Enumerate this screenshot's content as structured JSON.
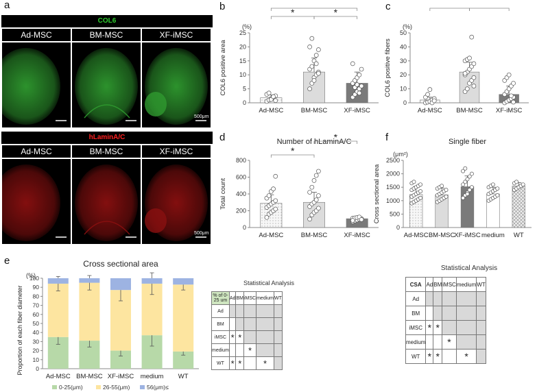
{
  "panels": {
    "a": "a",
    "b": "b",
    "c": "c",
    "d": "d",
    "e": "e",
    "f": "f"
  },
  "micrographs": {
    "col6": {
      "title": "COL6",
      "title_color": "#2ecc2e",
      "labels": [
        "Ad-MSC",
        "BM-MSC",
        "XF-iMSC"
      ],
      "scale": "500μm",
      "stain_color": "#2f9a2f"
    },
    "lamin": {
      "title": "hLaminA/C",
      "title_color": "#ff2020",
      "labels": [
        "Ad-MSC",
        "BM-MSC",
        "XF-iMSC"
      ],
      "scale": "500μm",
      "stain_color": "#8a1010"
    }
  },
  "chart_data": [
    {
      "id": "b",
      "type": "bar",
      "title": "",
      "unit": "(%)",
      "ylabel": "COL6 positive area",
      "categories": [
        "Ad-MSC",
        "BM-MSC",
        "XF-iMSC"
      ],
      "values": [
        1.8,
        11,
        7
      ],
      "errors": [
        1,
        5,
        4
      ],
      "colors": [
        "#f4f4f4",
        "#dcdcdc",
        "#7a7a7a"
      ],
      "patterns": [
        "dots",
        "none",
        "none"
      ],
      "ylim": [
        0,
        25
      ],
      "yticks": [
        "0",
        "5",
        "10",
        "15",
        "20",
        "25"
      ],
      "points": [
        [
          0.5,
          1,
          1.5,
          2,
          2.5,
          3,
          3.5,
          1.2,
          2.2,
          0.8
        ],
        [
          5,
          7,
          9,
          10,
          11,
          12,
          13,
          15,
          17,
          19,
          20,
          23,
          8,
          14,
          10.5
        ],
        [
          2,
          3,
          4,
          5,
          6,
          7,
          8,
          9,
          10,
          12,
          14,
          5.5,
          6.5,
          3.5
        ]
      ],
      "significance": [
        {
          "from": 0,
          "to": 1,
          "label": "*"
        },
        {
          "from": 1,
          "to": 2,
          "label": "*"
        },
        {
          "from": 0,
          "to": 2,
          "label": "*"
        }
      ]
    },
    {
      "id": "c",
      "type": "bar",
      "title": "",
      "unit": "(%)",
      "ylabel": "COL6 positive fibers",
      "categories": [
        "Ad-MSC",
        "BM-MSC",
        "XF-iMSC"
      ],
      "values": [
        2,
        22,
        6
      ],
      "errors": [
        2,
        7,
        6
      ],
      "colors": [
        "#f4f4f4",
        "#dcdcdc",
        "#7a7a7a"
      ],
      "patterns": [
        "dots",
        "none",
        "none"
      ],
      "ylim": [
        0,
        50
      ],
      "yticks": [
        "0",
        "10",
        "20",
        "30",
        "40",
        "50"
      ],
      "points": [
        [
          0,
          0.5,
          1,
          2,
          3,
          4,
          6,
          9.5,
          0,
          1.5
        ],
        [
          8,
          10,
          14,
          16,
          18,
          20,
          22,
          24,
          26,
          28,
          30,
          31,
          32,
          47,
          12,
          21
        ],
        [
          0,
          1,
          2,
          3,
          4,
          6,
          8,
          10,
          12,
          14,
          16,
          18,
          20,
          5,
          0.5
        ]
      ],
      "significance": [
        {
          "from": 0,
          "to": 1,
          "label": "*"
        },
        {
          "from": 1,
          "to": 2,
          "label": "*"
        }
      ]
    },
    {
      "id": "d",
      "type": "bar",
      "title": "Number of hLaminA/C",
      "ylabel": "Total count",
      "categories": [
        "Ad-MSC",
        "BM-MSC",
        "XF-iMSC"
      ],
      "values": [
        290,
        300,
        105
      ],
      "errors": [
        100,
        120,
        20
      ],
      "colors": [
        "#f4f4f4",
        "#dcdcdc",
        "#7a7a7a"
      ],
      "patterns": [
        "dots",
        "none",
        "none"
      ],
      "ylim": [
        0,
        800
      ],
      "yticks": [
        "0",
        "200",
        "400",
        "600",
        "800"
      ],
      "points": [
        [
          120,
          160,
          180,
          200,
          220,
          240,
          260,
          280,
          300,
          320,
          350,
          380,
          430,
          460,
          610
        ],
        [
          100,
          150,
          180,
          200,
          230,
          250,
          280,
          300,
          330,
          380,
          420,
          480,
          560,
          620,
          670
        ],
        [
          70,
          80,
          90,
          100,
          105,
          110,
          115,
          120,
          125,
          95,
          85
        ]
      ],
      "significance": [
        {
          "from": 0,
          "to": 1,
          "label": "*"
        },
        {
          "from": 1,
          "to": 2,
          "label": "*"
        }
      ]
    },
    {
      "id": "f",
      "type": "bar",
      "title": "Single fiber",
      "unit": "(μm²)",
      "ylabel": "Cross sectional area",
      "categories": [
        "Ad-MSC",
        "BM-MSC",
        "XF-iMSC",
        "medium",
        "WT"
      ],
      "values": [
        1230,
        1220,
        1520,
        1250,
        1550
      ],
      "errors": [
        300,
        250,
        400,
        250,
        120
      ],
      "colors": [
        "#f4f4f4",
        "#dcdcdc",
        "#7a7a7a",
        "#ffffff",
        "#e4e4e4"
      ],
      "patterns": [
        "dots",
        "none",
        "none",
        "none",
        "cross"
      ],
      "ylim": [
        0,
        2500
      ],
      "yticks": [
        "0",
        "500",
        "1000",
        "1500",
        "2000",
        "2500"
      ],
      "points": [
        [
          900,
          950,
          1000,
          1050,
          1100,
          1150,
          1200,
          1250,
          1300,
          1350,
          1400,
          1450,
          1500,
          1550,
          1600,
          1650,
          1700
        ],
        [
          950,
          1000,
          1050,
          1100,
          1150,
          1200,
          1250,
          1300,
          1350,
          1400,
          1450,
          1500,
          1550
        ],
        [
          1100,
          1200,
          1300,
          1400,
          1500,
          1600,
          1700,
          1800,
          1900,
          2000,
          2100,
          2200,
          1250
        ],
        [
          1000,
          1050,
          1100,
          1150,
          1200,
          1250,
          1300,
          1350,
          1400,
          1450,
          1500,
          1550,
          1600
        ],
        [
          1400,
          1450,
          1500,
          1550,
          1600,
          1650,
          1700
        ]
      ],
      "significance": []
    },
    {
      "id": "e",
      "type": "bar",
      "stacked": true,
      "title": "Cross sectional area",
      "unit": "(%)",
      "ylabel": "Proportion of each fiber diameter",
      "categories": [
        "Ad-MSC",
        "BM-MSC",
        "XF-iMSC",
        "medium",
        "WT"
      ],
      "ylim": [
        0,
        100
      ],
      "yticks": [
        "0",
        "10",
        "20",
        "30",
        "40",
        "50",
        "60",
        "70",
        "80",
        "90",
        "100"
      ],
      "series": [
        {
          "name": "0-25(μm)",
          "color": "#b7d9a8",
          "values": [
            35,
            31,
            20,
            37,
            19
          ],
          "errors": [
            8,
            7,
            6,
            12,
            4
          ]
        },
        {
          "name": "26-55(μm)",
          "color": "#fde5a0",
          "values": [
            59,
            64,
            67,
            57,
            74
          ],
          "errors": [
            8,
            8,
            12,
            12,
            6
          ]
        },
        {
          "name": "56(μm)≤",
          "color": "#9db3e2",
          "values": [
            6,
            5,
            13,
            6,
            7
          ]
        }
      ]
    }
  ],
  "stat_tables": [
    {
      "title": "Statistical Analysis",
      "corner": "% of 0-25 um",
      "columns": [
        "Ad",
        "BM",
        "iMSC",
        "medium",
        "WT"
      ],
      "rows": [
        "Ad",
        "BM",
        "iMSC",
        "medium",
        "WT"
      ],
      "cells": [
        [
          "",
          "",
          "",
          "",
          ""
        ],
        [
          "",
          "",
          "",
          "",
          ""
        ],
        [
          "*",
          "*",
          "",
          "",
          ""
        ],
        [
          "",
          "",
          "*",
          "",
          ""
        ],
        [
          "*",
          "*",
          "",
          "*",
          ""
        ]
      ]
    },
    {
      "title": "Statistical Analysis",
      "corner": "CSA",
      "columns": [
        "Ad",
        "BM",
        "iMSC",
        "medium",
        "WT"
      ],
      "rows": [
        "Ad",
        "BM",
        "iMSC",
        "medium",
        "WT"
      ],
      "cells": [
        [
          "",
          "",
          "",
          "",
          ""
        ],
        [
          "",
          "",
          "",
          "",
          ""
        ],
        [
          "*",
          "*",
          "",
          "",
          ""
        ],
        [
          "",
          "",
          "*",
          "",
          ""
        ],
        [
          "*",
          "*",
          "",
          "*",
          ""
        ]
      ]
    }
  ]
}
